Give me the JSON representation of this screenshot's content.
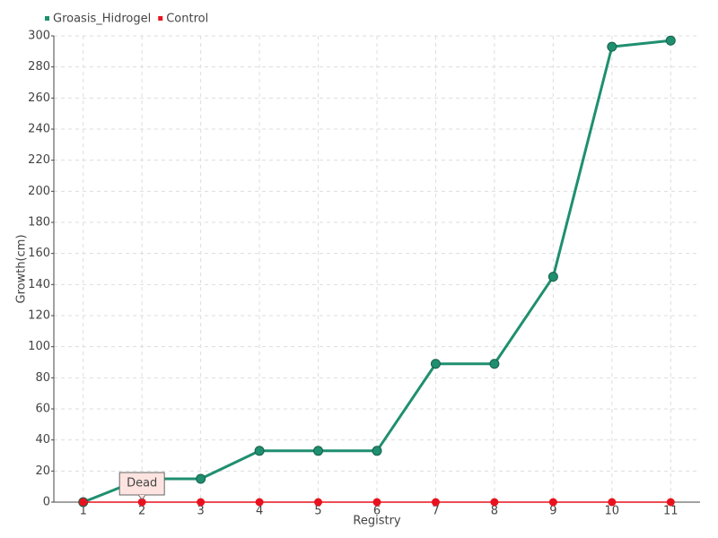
{
  "chart_data": {
    "type": "line",
    "x_label": "Registry",
    "y_label": "Growth(cm)",
    "categories": [
      "1",
      "2",
      "3",
      "4",
      "5",
      "6",
      "7",
      "8",
      "9",
      "10",
      "11"
    ],
    "series": [
      {
        "name": "Groasis_Hidrogel",
        "color": "#1f8f6f",
        "values": [
          0,
          15,
          15,
          33,
          33,
          33,
          89,
          89,
          145,
          293,
          297
        ]
      },
      {
        "name": "Control",
        "color": "#e8121e",
        "values": [
          0,
          0,
          0,
          0,
          0,
          0,
          0,
          0,
          0,
          0,
          0
        ]
      }
    ],
    "ylim": [
      0,
      300
    ],
    "yticks": [
      0,
      20,
      40,
      60,
      80,
      100,
      120,
      140,
      160,
      180,
      200,
      220,
      240,
      260,
      280,
      300
    ],
    "grid": true,
    "legend": "top-left",
    "annotation": {
      "text": "Dead",
      "series": "Control",
      "category": "2"
    }
  }
}
